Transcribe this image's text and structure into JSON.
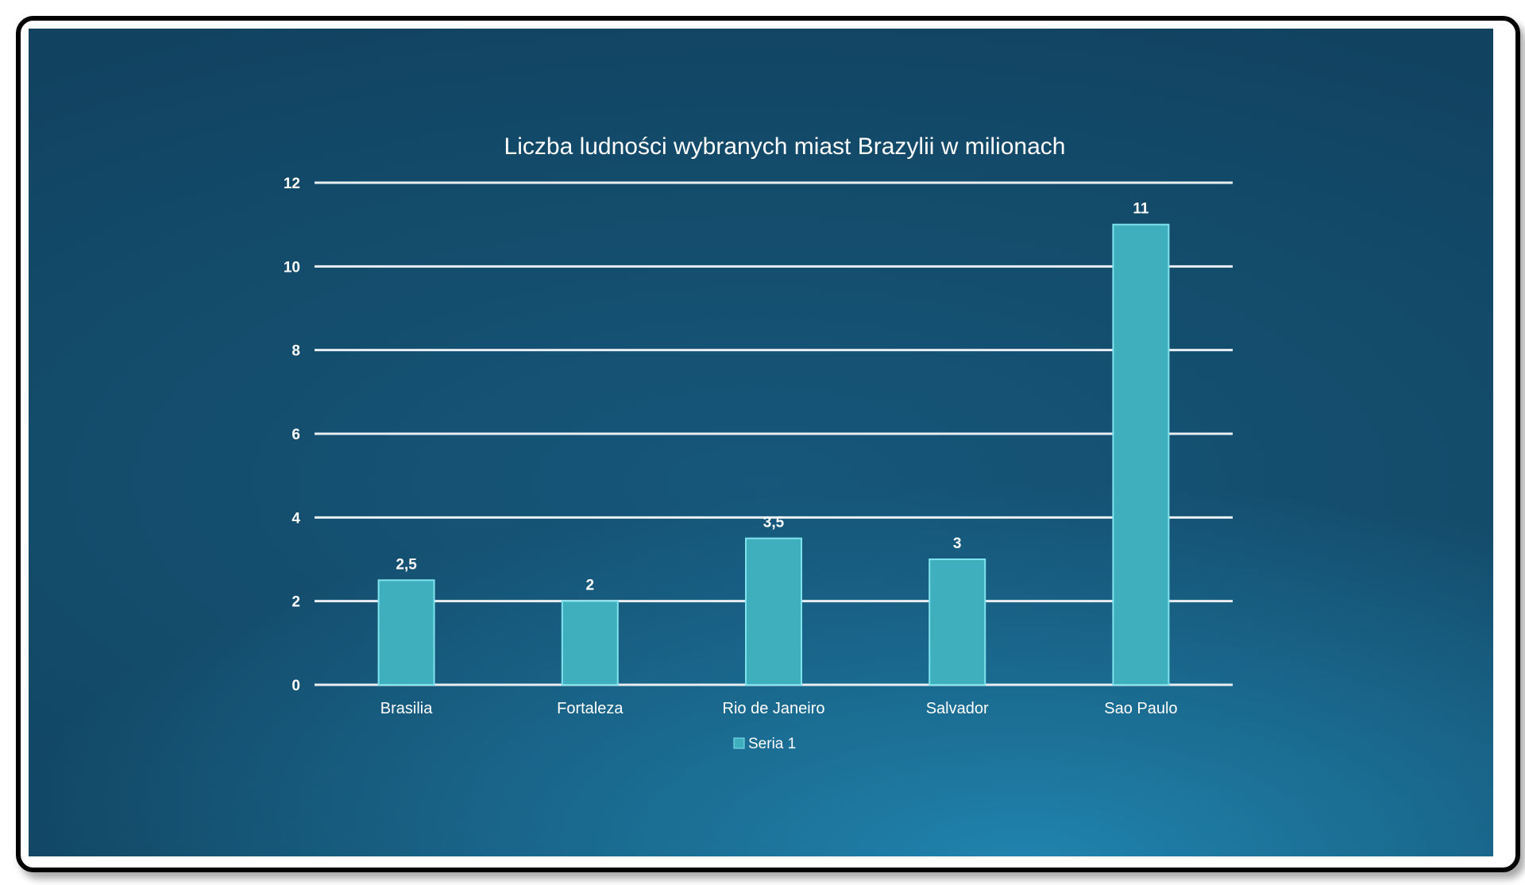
{
  "chart_data": {
    "type": "bar",
    "title": "Liczba ludności wybranych miast Brazylii w milionach",
    "categories": [
      "Brasilia",
      "Fortaleza",
      "Rio de Janeiro",
      "Salvador",
      "Sao Paulo"
    ],
    "series": [
      {
        "name": "Seria 1",
        "values": [
          2.5,
          2,
          3.5,
          3,
          11
        ],
        "labels": [
          "2,5",
          "2",
          "3,5",
          "3",
          "11"
        ]
      }
    ],
    "ylim": [
      0,
      12
    ],
    "yticks": [
      0,
      2,
      4,
      6,
      8,
      10,
      12
    ],
    "ytick_labels": [
      "0",
      "2",
      "4",
      "6",
      "8",
      "10",
      "12"
    ],
    "grid": true,
    "legend_position": "bottom",
    "colors": {
      "bar": "#3fafbd",
      "bar_edge": "#7fe3ee",
      "gridline": "#e8eef2",
      "text": "#ffffff"
    }
  }
}
